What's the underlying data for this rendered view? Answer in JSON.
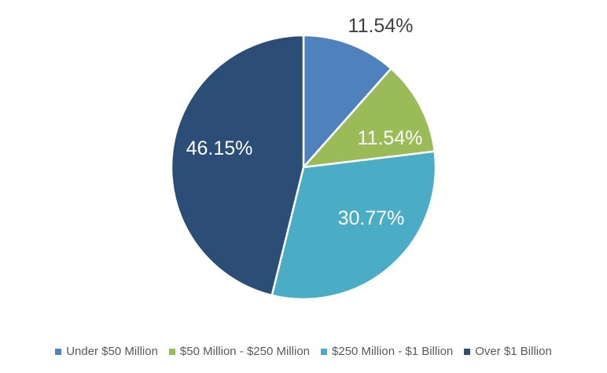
{
  "chart_data": {
    "type": "pie",
    "title": "",
    "categories": [
      "Under $50 Million",
      "$50 Million - $250 Million",
      "$250 Million - $1 Billion",
      "Over $1 Billion"
    ],
    "values": [
      11.54,
      11.54,
      30.77,
      46.15
    ],
    "labels": [
      "11.54%",
      "11.54%",
      "30.77%",
      "46.15%"
    ],
    "colors": [
      "#4F81BD",
      "#9BBB59",
      "#4BACC6",
      "#2C4D75"
    ],
    "legend_position": "bottom"
  }
}
